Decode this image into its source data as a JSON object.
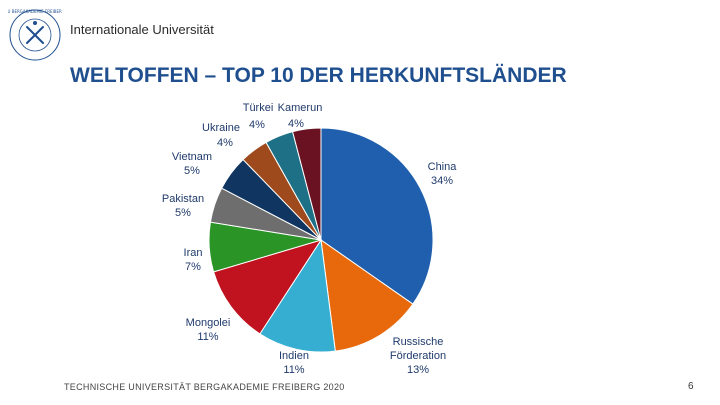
{
  "header": {
    "university": "Internationale Universität"
  },
  "logo": {
    "icon": "tu-bergakademie-seal-icon",
    "text": "TU BERGAKADEMIE FREIBERG",
    "color": "#1f4f8f"
  },
  "title": "WELTOFFEN – TOP 10 DER HERKUNFTSLÄNDER",
  "footer": {
    "institution": "TECHNISCHE UNIVERSITÄT BERGAKADEMIE FREIBERG 2020",
    "page": "6"
  },
  "chart_data": {
    "type": "pie",
    "title": "",
    "slices": [
      {
        "name": "China",
        "value": 34,
        "label": "34%",
        "color": "#1f5fae"
      },
      {
        "name": "Russische Förderation",
        "value": 13,
        "label": "13%",
        "color": "#e8690b"
      },
      {
        "name": "Indien",
        "value": 11,
        "label": "11%",
        "color": "#36aed2"
      },
      {
        "name": "Mongolei",
        "value": 11,
        "label": "11%",
        "color": "#c0121f"
      },
      {
        "name": "Iran",
        "value": 7,
        "label": "7%",
        "color": "#2a9426"
      },
      {
        "name": "Pakistan",
        "value": 5,
        "label": "5%",
        "color": "#6e6e6e"
      },
      {
        "name": "Vietnam",
        "value": 5,
        "label": "5%",
        "color": "#0f3560"
      },
      {
        "name": "Ukraine",
        "value": 4,
        "label": "4%",
        "color": "#9e4a1c"
      },
      {
        "name": "Türkei",
        "value": 4,
        "label": "4%",
        "color": "#1d7085"
      },
      {
        "name": "Kamerun",
        "value": 4,
        "label": "4%",
        "color": "#6a1222"
      }
    ]
  }
}
